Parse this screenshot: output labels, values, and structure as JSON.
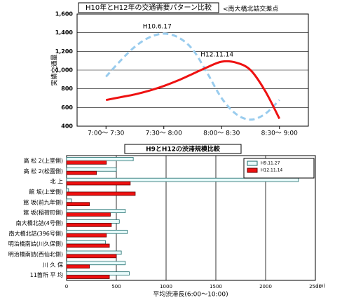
{
  "chart_data": [
    {
      "type": "line",
      "title": "H10年とH12年の交通需要パターン比較",
      "subtitle": "<南大橋北詰交差点",
      "ylabel": "実績交通量",
      "x": [
        0,
        0.25,
        0.5,
        0.75,
        1,
        1.25,
        1.5,
        1.75,
        2,
        2.25,
        2.5,
        2.75,
        3
      ],
      "xlim": [
        -0.5,
        3.5
      ],
      "xticks": [
        {
          "value": 0,
          "label": "7:00～ 7:30"
        },
        {
          "value": 1,
          "label": "7:30～ 8:00"
        },
        {
          "value": 2,
          "label": "8:00～ 8:30"
        },
        {
          "value": 3,
          "label": "8:30～ 9:00"
        }
      ],
      "ylim": [
        400,
        1600
      ],
      "yticks": [
        400,
        600,
        800,
        {
          "value": 1000,
          "label": "1,000"
        },
        {
          "value": 1200,
          "label": "1,200"
        },
        {
          "value": 1400,
          "label": "1,400"
        },
        {
          "value": 1600,
          "label": "1,600"
        }
      ],
      "grid": true,
      "series": [
        {
          "name": "H10.6.17",
          "color": "#99ccee",
          "linestyle": "dashed",
          "values": [
            930,
            1100,
            1250,
            1350,
            1390,
            1350,
            1220,
            970,
            700,
            530,
            470,
            530,
            680
          ]
        },
        {
          "name": "H12.11.14",
          "color": "#ee1111",
          "linestyle": "solid",
          "values": [
            680,
            710,
            740,
            780,
            830,
            890,
            960,
            1030,
            1090,
            1080,
            1000,
            780,
            480
          ]
        }
      ]
    },
    {
      "type": "barh",
      "title": "H9とH12の渋滞規模比較",
      "xlabel": "平均渋滞長(6:00～10:00)",
      "xunit": "(m)",
      "categories": [
        "高 松 2(上堂側)",
        "高 松 2(松園側)",
        "北 上",
        "館 坂(上堂側)",
        "館 坂(前九年側)",
        "館 坂(稲荷町側)",
        "南大橋北詰(4号側)",
        "南大橋北詰(396号側)",
        "明治橋南詰(川久保側)",
        "明治橋南詰(西仙北側)",
        "川 久 保",
        "11箇所 平 均"
      ],
      "xlim": [
        0,
        2500
      ],
      "xticks": [
        0,
        500,
        1000,
        1500,
        2000,
        2500
      ],
      "grid": true,
      "legend": "upper right",
      "series": [
        {
          "name": "H9.11.27",
          "color": "#e8fbfb",
          "edgecolor": "#1a6a6a",
          "values": [
            670,
            500,
            2330,
            20,
            50,
            590,
            530,
            610,
            390,
            550,
            590,
            630
          ]
        },
        {
          "name": "H12.11.14",
          "color": "#ee1111",
          "edgecolor": "#660000",
          "values": [
            400,
            300,
            640,
            690,
            230,
            440,
            450,
            400,
            430,
            500,
            230,
            430
          ]
        }
      ]
    }
  ]
}
